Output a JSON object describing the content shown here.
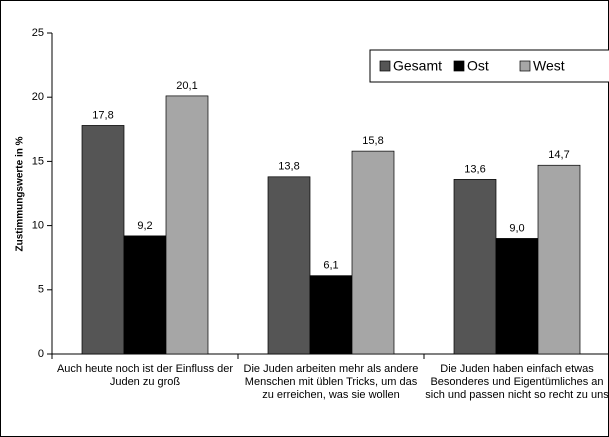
{
  "chart_data": {
    "type": "bar",
    "categories": [
      "Auch heute noch ist der Einfluss der Juden zu groß",
      "Die Juden arbeiten mehr als andere Menschen mit üblen Tricks, um das zu erreichen, was sie wollen",
      "Die Juden haben einfach etwas Besonderes und Eigentümliches an sich und passen nicht so recht zu uns"
    ],
    "series": [
      {
        "name": "Gesamt",
        "color": "#555555",
        "values": [
          17.8,
          13.8,
          13.6
        ],
        "value_labels": [
          "17,8",
          "13,8",
          "13,6"
        ]
      },
      {
        "name": "Ost",
        "color": "#000000",
        "values": [
          9.2,
          6.1,
          9.0
        ],
        "value_labels": [
          "9,2",
          "6,1",
          "9,0"
        ]
      },
      {
        "name": "West",
        "color": "#a6a6a6",
        "values": [
          20.1,
          15.8,
          14.7
        ],
        "value_labels": [
          "20,1",
          "15,8",
          "14,7"
        ]
      }
    ],
    "y_label": "Zustimmungswerte in %",
    "ylim": [
      0,
      25
    ],
    "yticks": [
      0,
      5,
      10,
      15,
      20,
      25
    ],
    "legend": "top-right"
  }
}
